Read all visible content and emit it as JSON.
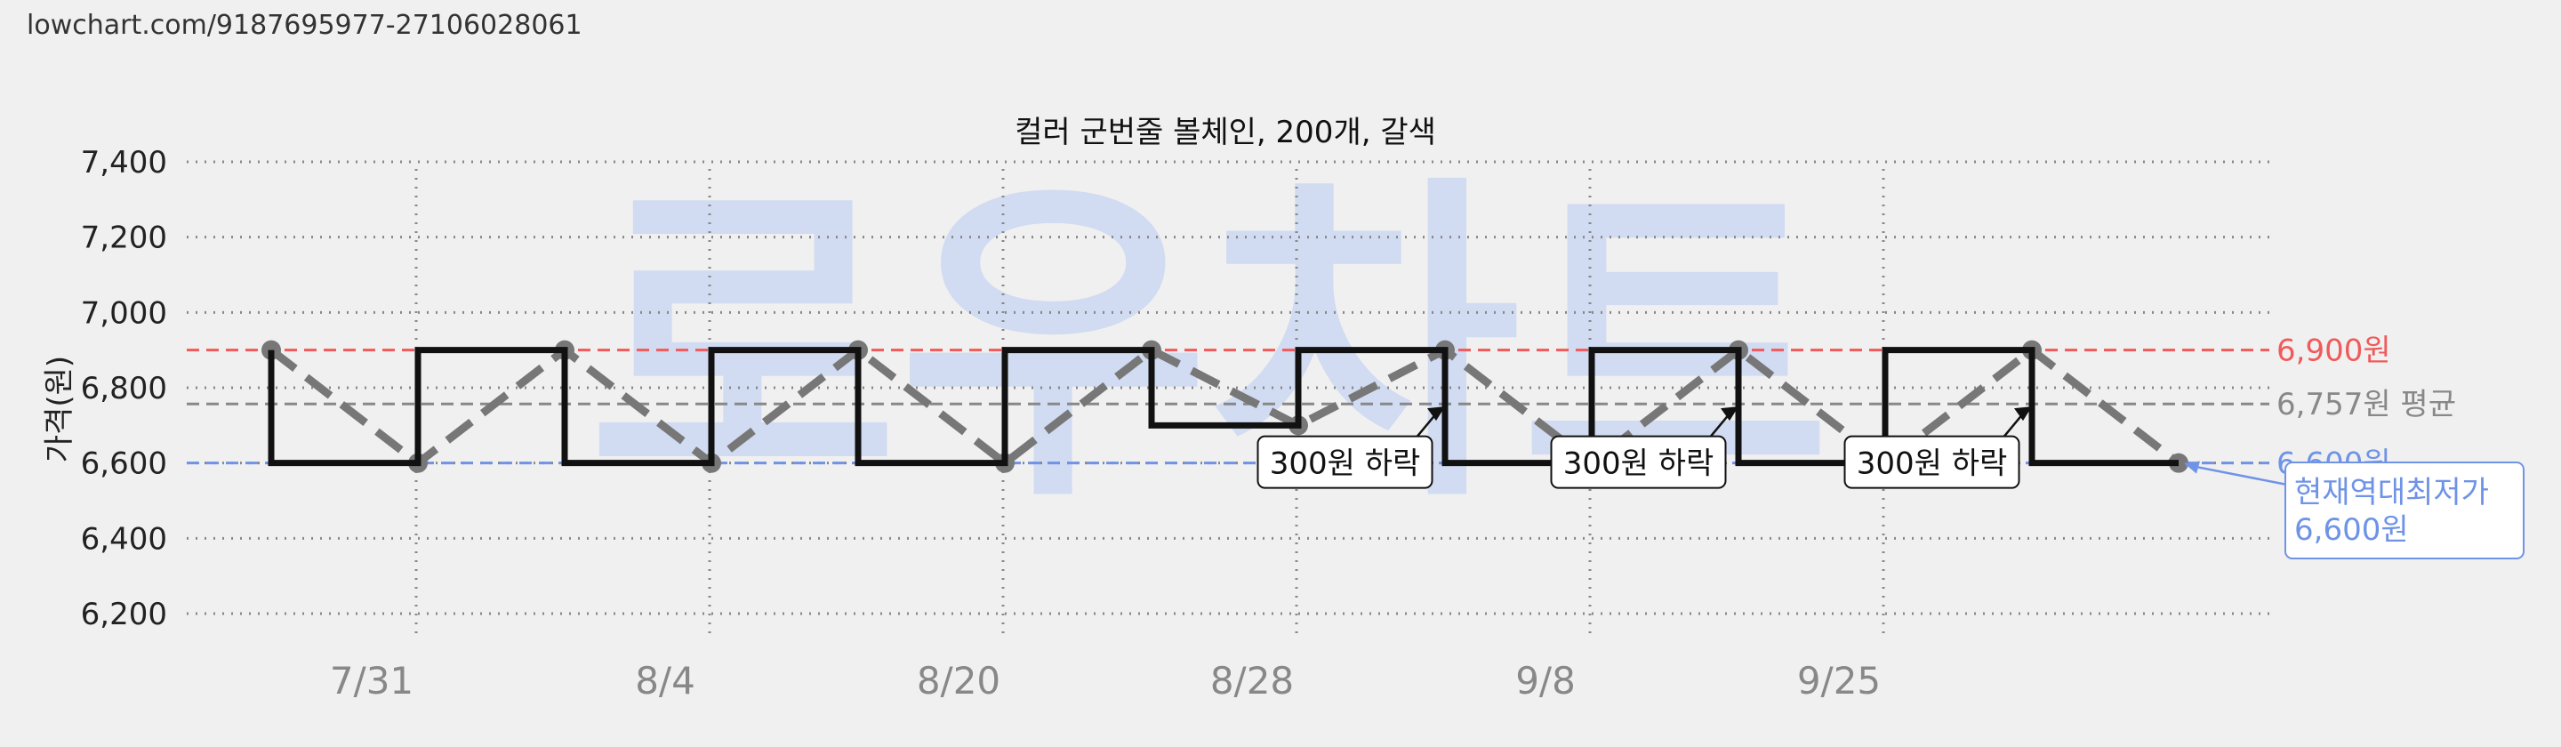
{
  "url": "lowchart.com/9187695977-27106028061",
  "watermark": "로우차트",
  "colors": {
    "max_line": "#f05a5a",
    "min_line": "#6f93e6",
    "avg_line": "#888888",
    "price_step": "#111111",
    "trend": "#777777"
  },
  "chart_data": {
    "type": "line",
    "title": "컬러 군번줄 볼체인, 200개, 갈색",
    "ylabel": "가격(원)",
    "xlabel": "",
    "ylim": [
      6100,
      7400
    ],
    "yticks": [
      6200,
      6400,
      6600,
      6800,
      7000,
      7200,
      7400
    ],
    "ytick_labels": [
      "6,200",
      "6,400",
      "6,600",
      "6,800",
      "7,000",
      "7,200",
      "7,400"
    ],
    "x_range": [
      0,
      14
    ],
    "xticks": [
      {
        "x": 1,
        "label": "7/31"
      },
      {
        "x": 3,
        "label": "8/4"
      },
      {
        "x": 5,
        "label": "8/20"
      },
      {
        "x": 7,
        "label": "8/28"
      },
      {
        "x": 9,
        "label": "9/8"
      },
      {
        "x": 11,
        "label": "9/25"
      }
    ],
    "grid": true,
    "step_series": {
      "points": [
        {
          "x": 0,
          "y": 6900
        },
        {
          "x": 0,
          "y": 6600
        },
        {
          "x": 1,
          "y": 6600
        },
        {
          "x": 1,
          "y": 6900
        },
        {
          "x": 2,
          "y": 6900
        },
        {
          "x": 2,
          "y": 6600
        },
        {
          "x": 3,
          "y": 6600
        },
        {
          "x": 3,
          "y": 6900
        },
        {
          "x": 4,
          "y": 6900
        },
        {
          "x": 4,
          "y": 6600
        },
        {
          "x": 5,
          "y": 6600
        },
        {
          "x": 5,
          "y": 6900
        },
        {
          "x": 6,
          "y": 6900
        },
        {
          "x": 6,
          "y": 6700
        },
        {
          "x": 7,
          "y": 6700
        },
        {
          "x": 7,
          "y": 6900
        },
        {
          "x": 8,
          "y": 6900
        },
        {
          "x": 8,
          "y": 6600
        },
        {
          "x": 9,
          "y": 6600
        },
        {
          "x": 9,
          "y": 6900
        },
        {
          "x": 10,
          "y": 6900
        },
        {
          "x": 10,
          "y": 6600
        },
        {
          "x": 11,
          "y": 6600
        },
        {
          "x": 11,
          "y": 6900
        },
        {
          "x": 12,
          "y": 6900
        },
        {
          "x": 12,
          "y": 6600
        },
        {
          "x": 13,
          "y": 6600
        }
      ]
    },
    "trend_series": {
      "points": [
        {
          "x": 0,
          "y": 6900
        },
        {
          "x": 1,
          "y": 6600
        },
        {
          "x": 2,
          "y": 6900
        },
        {
          "x": 3,
          "y": 6600
        },
        {
          "x": 4,
          "y": 6900
        },
        {
          "x": 5,
          "y": 6600
        },
        {
          "x": 6,
          "y": 6900
        },
        {
          "x": 7,
          "y": 6700
        },
        {
          "x": 8,
          "y": 6900
        },
        {
          "x": 9,
          "y": 6600
        },
        {
          "x": 10,
          "y": 6900
        },
        {
          "x": 11,
          "y": 6600
        },
        {
          "x": 12,
          "y": 6900
        },
        {
          "x": 13,
          "y": 6600
        }
      ]
    },
    "reference_lines": [
      {
        "name": "max",
        "y": 6900,
        "label": "6,900원"
      },
      {
        "name": "avg",
        "y": 6757,
        "label": "6,757원 평균"
      },
      {
        "name": "min",
        "y": 6600,
        "label": "6,600원"
      }
    ],
    "annotations": [
      {
        "text": "300원 하락",
        "x": 7.3,
        "y": 6600,
        "arrow_to": {
          "x": 8,
          "y": 6750
        }
      },
      {
        "text": "300원 하락",
        "x": 9.3,
        "y": 6600,
        "arrow_to": {
          "x": 10,
          "y": 6750
        }
      },
      {
        "text": "300원 하락",
        "x": 11.3,
        "y": 6600,
        "arrow_to": {
          "x": 12,
          "y": 6750
        }
      }
    ],
    "callout": {
      "lines": [
        "현재역대최저가",
        "6,600원"
      ],
      "x": 13,
      "y": 6600
    }
  }
}
